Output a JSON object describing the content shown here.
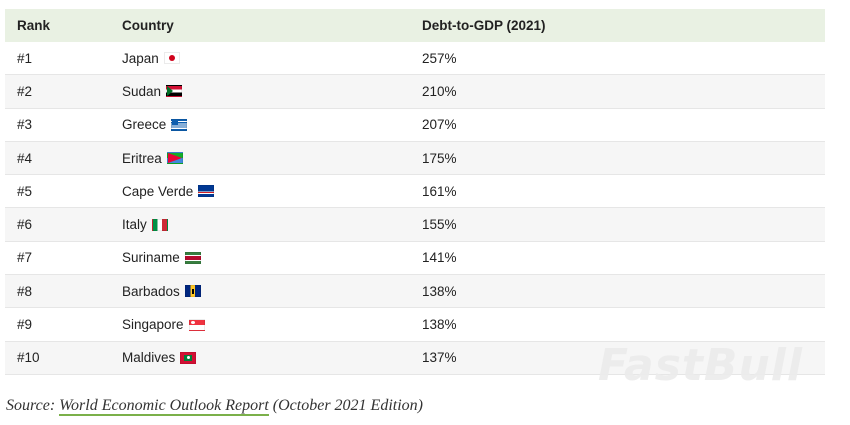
{
  "headers": {
    "rank": "Rank",
    "country": "Country",
    "debt": "Debt-to-GDP (2021)"
  },
  "rows": [
    {
      "rank": "#1",
      "country": "Japan",
      "debt": "257%",
      "flag": "japan-flag-icon"
    },
    {
      "rank": "#2",
      "country": "Sudan",
      "debt": "210%",
      "flag": "sudan-flag-icon"
    },
    {
      "rank": "#3",
      "country": "Greece",
      "debt": "207%",
      "flag": "greece-flag-icon"
    },
    {
      "rank": "#4",
      "country": "Eritrea",
      "debt": "175%",
      "flag": "eritrea-flag-icon"
    },
    {
      "rank": "#5",
      "country": "Cape Verde",
      "debt": "161%",
      "flag": "cape-verde-flag-icon"
    },
    {
      "rank": "#6",
      "country": "Italy",
      "debt": "155%",
      "flag": "italy-flag-icon"
    },
    {
      "rank": "#7",
      "country": "Suriname",
      "debt": "141%",
      "flag": "suriname-flag-icon"
    },
    {
      "rank": "#8",
      "country": "Barbados",
      "debt": "138%",
      "flag": "barbados-flag-icon"
    },
    {
      "rank": "#9",
      "country": "Singapore",
      "debt": "138%",
      "flag": "singapore-flag-icon"
    },
    {
      "rank": "#10",
      "country": "Maldives",
      "debt": "137%",
      "flag": "maldives-flag-icon"
    }
  ],
  "source": {
    "prefix": "Source: ",
    "link": "World Economic Outlook Report",
    "suffix": " (October 2021 Edition)"
  },
  "watermark": "FastBull",
  "colors": {
    "header_bg": "#e9f1e3",
    "link_underline": "#7bb04a",
    "alt_row": "#f6f6f6"
  }
}
